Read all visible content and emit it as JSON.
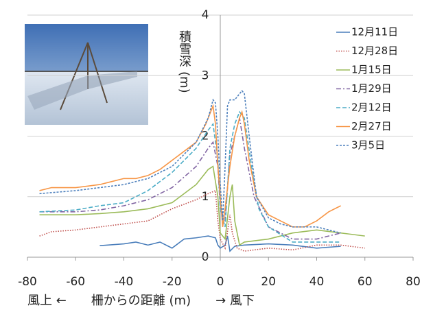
{
  "chart_data": {
    "type": "line",
    "x_label": "風上 ←　　柵からの距離 (m)　　→ 風下",
    "y_label": "積雪深 (m)",
    "xlim": [
      -80,
      80
    ],
    "xticks": [
      -80,
      -60,
      -40,
      -20,
      0,
      20,
      40,
      60,
      80
    ],
    "ylim": [
      0,
      4
    ],
    "yticks": [
      0,
      1,
      2,
      3,
      4
    ],
    "grid": true,
    "legend": "right",
    "series": [
      {
        "name": "12月11日",
        "color": "#4a7ebb",
        "dash": "solid",
        "x": [
          -50,
          -40,
          -35,
          -30,
          -25,
          -20,
          -15,
          -10,
          -5,
          -2,
          -1,
          0,
          2,
          3,
          4,
          6,
          10,
          20,
          30,
          40,
          50
        ],
        "values": [
          0.19,
          0.22,
          0.25,
          0.2,
          0.25,
          0.15,
          0.3,
          0.32,
          0.35,
          0.32,
          0.2,
          0.15,
          0.2,
          0.35,
          0.1,
          0.18,
          0.2,
          0.22,
          0.2,
          0.15,
          0.18
        ]
      },
      {
        "name": "12月28日",
        "color": "#c0504d",
        "dash": "dot",
        "x": [
          -75,
          -70,
          -60,
          -50,
          -40,
          -30,
          -20,
          -10,
          -5,
          -2,
          -1,
          0,
          2,
          4,
          5,
          7,
          10,
          20,
          30,
          40,
          50,
          60
        ],
        "values": [
          0.35,
          0.42,
          0.45,
          0.5,
          0.55,
          0.6,
          0.8,
          0.95,
          1.05,
          1.1,
          0.6,
          0.3,
          0.15,
          0.7,
          0.4,
          0.15,
          0.1,
          0.15,
          0.12,
          0.2,
          0.2,
          0.15
        ]
      },
      {
        "name": "1月15日",
        "color": "#9bbb59",
        "dash": "solid",
        "x": [
          -75,
          -60,
          -50,
          -40,
          -30,
          -20,
          -10,
          -5,
          -3,
          -1,
          0,
          2,
          4,
          5,
          6,
          8,
          10,
          20,
          30,
          40,
          50,
          60
        ],
        "values": [
          0.7,
          0.7,
          0.72,
          0.75,
          0.8,
          0.9,
          1.2,
          1.45,
          1.5,
          1.0,
          0.4,
          0.3,
          1.0,
          1.2,
          0.6,
          0.2,
          0.25,
          0.3,
          0.4,
          0.45,
          0.4,
          0.35
        ]
      },
      {
        "name": "1月29日",
        "color": "#8064a2",
        "dash": "dashdot",
        "x": [
          -75,
          -60,
          -50,
          -40,
          -30,
          -20,
          -10,
          -5,
          -3,
          -1,
          0,
          2,
          4,
          6,
          8,
          10,
          14,
          20,
          30,
          40,
          50
        ],
        "values": [
          0.75,
          0.75,
          0.78,
          0.85,
          0.95,
          1.15,
          1.5,
          1.8,
          1.9,
          1.5,
          0.8,
          0.6,
          1.7,
          2.0,
          2.3,
          1.8,
          1.0,
          0.5,
          0.3,
          0.3,
          0.4
        ]
      },
      {
        "name": "2月12日",
        "color": "#4bacc6",
        "dash": "dash",
        "x": [
          -75,
          -60,
          -50,
          -40,
          -30,
          -20,
          -10,
          -5,
          -3,
          -1,
          0,
          2,
          4,
          6,
          8,
          10,
          13,
          16,
          20,
          30,
          40,
          50
        ],
        "values": [
          0.75,
          0.78,
          0.85,
          0.9,
          1.1,
          1.4,
          1.8,
          2.1,
          2.2,
          1.6,
          0.8,
          0.5,
          1.8,
          2.2,
          2.4,
          2.3,
          1.5,
          0.8,
          0.5,
          0.25,
          0.25,
          0.25
        ]
      },
      {
        "name": "2月27日",
        "color": "#f79646",
        "dash": "solid",
        "x": [
          -75,
          -70,
          -60,
          -50,
          -45,
          -40,
          -35,
          -30,
          -25,
          -20,
          -15,
          -10,
          -6,
          -4,
          -3,
          -2,
          -1,
          0,
          1,
          2,
          4,
          6,
          8,
          9,
          10,
          12,
          15,
          20,
          25,
          30,
          35,
          40,
          45,
          50
        ],
        "values": [
          1.1,
          1.15,
          1.15,
          1.2,
          1.25,
          1.3,
          1.3,
          1.35,
          1.45,
          1.6,
          1.75,
          1.9,
          2.2,
          2.4,
          2.5,
          2.2,
          1.5,
          1.0,
          0.5,
          0.8,
          1.5,
          2.0,
          2.3,
          2.4,
          2.2,
          1.6,
          1.0,
          0.7,
          0.6,
          0.5,
          0.5,
          0.6,
          0.75,
          0.85
        ]
      },
      {
        "name": "3月5日",
        "color": "#4f81bd",
        "dash": "shortdash",
        "x": [
          -75,
          -60,
          -50,
          -40,
          -30,
          -20,
          -10,
          -5,
          -3,
          -2,
          -1,
          0,
          1,
          2,
          3,
          4,
          6,
          8,
          9,
          10,
          12,
          15,
          20,
          25,
          30,
          35,
          40,
          45,
          50
        ],
        "values": [
          1.05,
          1.1,
          1.15,
          1.2,
          1.3,
          1.5,
          1.9,
          2.3,
          2.6,
          2.55,
          2.0,
          1.2,
          0.6,
          1.5,
          2.5,
          2.6,
          2.6,
          2.7,
          2.75,
          2.7,
          2.0,
          1.0,
          0.65,
          0.55,
          0.5,
          0.5,
          0.5,
          0.45,
          0.4
        ]
      }
    ]
  }
}
